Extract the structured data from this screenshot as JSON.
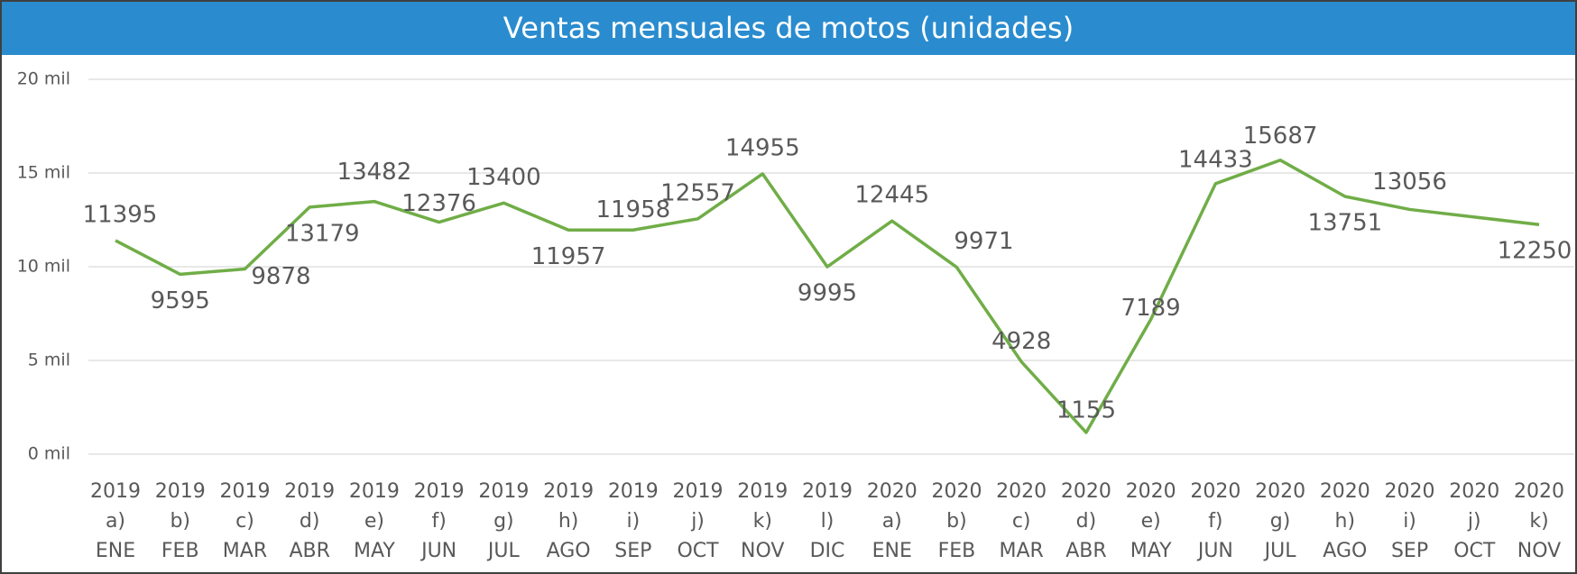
{
  "chart_data": {
    "type": "line",
    "title": "Ventas mensuales de motos (unidades)",
    "categories": [
      [
        "2019",
        "a)",
        "ENE"
      ],
      [
        "2019",
        "b)",
        "FEB"
      ],
      [
        "2019",
        "c)",
        "MAR"
      ],
      [
        "2019",
        "d)",
        "ABR"
      ],
      [
        "2019",
        "e)",
        "MAY"
      ],
      [
        "2019",
        "f)",
        "JUN"
      ],
      [
        "2019",
        "g)",
        "JUL"
      ],
      [
        "2019",
        "h)",
        "AGO"
      ],
      [
        "2019",
        "i)",
        "SEP"
      ],
      [
        "2019",
        "j)",
        "OCT"
      ],
      [
        "2019",
        "k)",
        "NOV"
      ],
      [
        "2019",
        "l)",
        "DIC"
      ],
      [
        "2020",
        "a)",
        "ENE"
      ],
      [
        "2020",
        "b)",
        "FEB"
      ],
      [
        "2020",
        "c)",
        "MAR"
      ],
      [
        "2020",
        "d)",
        "ABR"
      ],
      [
        "2020",
        "e)",
        "MAY"
      ],
      [
        "2020",
        "f)",
        "JUN"
      ],
      [
        "2020",
        "g)",
        "JUL"
      ],
      [
        "2020",
        "h)",
        "AGO"
      ],
      [
        "2020",
        "i)",
        "SEP"
      ],
      [
        "2020",
        "j)",
        "OCT"
      ],
      [
        "2020",
        "k)",
        "NOV"
      ]
    ],
    "values": [
      11395,
      9595,
      9878,
      13179,
      13482,
      12376,
      13400,
      11957,
      11958,
      12557,
      14955,
      9995,
      12445,
      9971,
      4928,
      1155,
      7189,
      14433,
      15687,
      13751,
      13056,
      12650,
      12250
    ],
    "value_labels": [
      "11395",
      "9595",
      "9878",
      "13179",
      "13482",
      "12376",
      "13400",
      "11957",
      "11958",
      "12557",
      "14955",
      "9995",
      "12445",
      "9971",
      "4928",
      "1155",
      "7189",
      "14433",
      "15687",
      "13751",
      "13056",
      null,
      "12250"
    ],
    "color": "#70ad47",
    "ylim": [
      0,
      20000
    ],
    "yticks": [
      {
        "value": 0,
        "label": "0 mil"
      },
      {
        "value": 5000,
        "label": "5 mil"
      },
      {
        "value": 10000,
        "label": "10 mil"
      },
      {
        "value": 15000,
        "label": "15 mil"
      },
      {
        "value": 20000,
        "label": "20 mil"
      }
    ],
    "grid": true
  }
}
